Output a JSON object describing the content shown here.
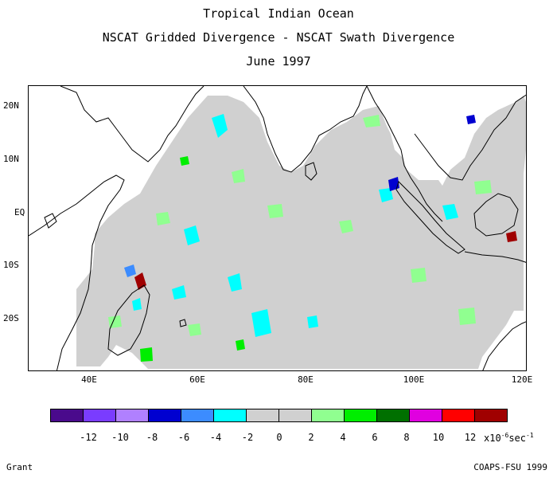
{
  "titles": {
    "line1": "Tropical Indian Ocean",
    "line2": "NSCAT Gridded Divergence - NSCAT Swath Divergence",
    "line3": "June 1997"
  },
  "map": {
    "lat_labels": [
      "20N",
      "10N",
      "EQ",
      "10S",
      "20S"
    ],
    "lon_labels": [
      "40E",
      "60E",
      "80E",
      "100E",
      "120E"
    ],
    "ocean_fill_color": "#d0d0d0",
    "coast_color": "#000000"
  },
  "colorbar": {
    "colors": [
      "#4a0a8c",
      "#7a3cff",
      "#b080ff",
      "#0000d0",
      "#3c8cff",
      "#00ffff",
      "#d0d0d0",
      "#d0d0d0",
      "#90ff90",
      "#00ee00",
      "#007000",
      "#e000e0",
      "#ff0000",
      "#a00000"
    ],
    "labels": [
      "-12",
      "-10",
      "-8",
      "-6",
      "-4",
      "-2",
      "0",
      "2",
      "4",
      "6",
      "8",
      "10",
      "12"
    ],
    "units": "x10",
    "units_exp": "-6",
    "units_tail": "sec",
    "units_tail_exp": "-1"
  },
  "credits": {
    "left": "Grant",
    "right": "COAPS-FSU 1999"
  }
}
